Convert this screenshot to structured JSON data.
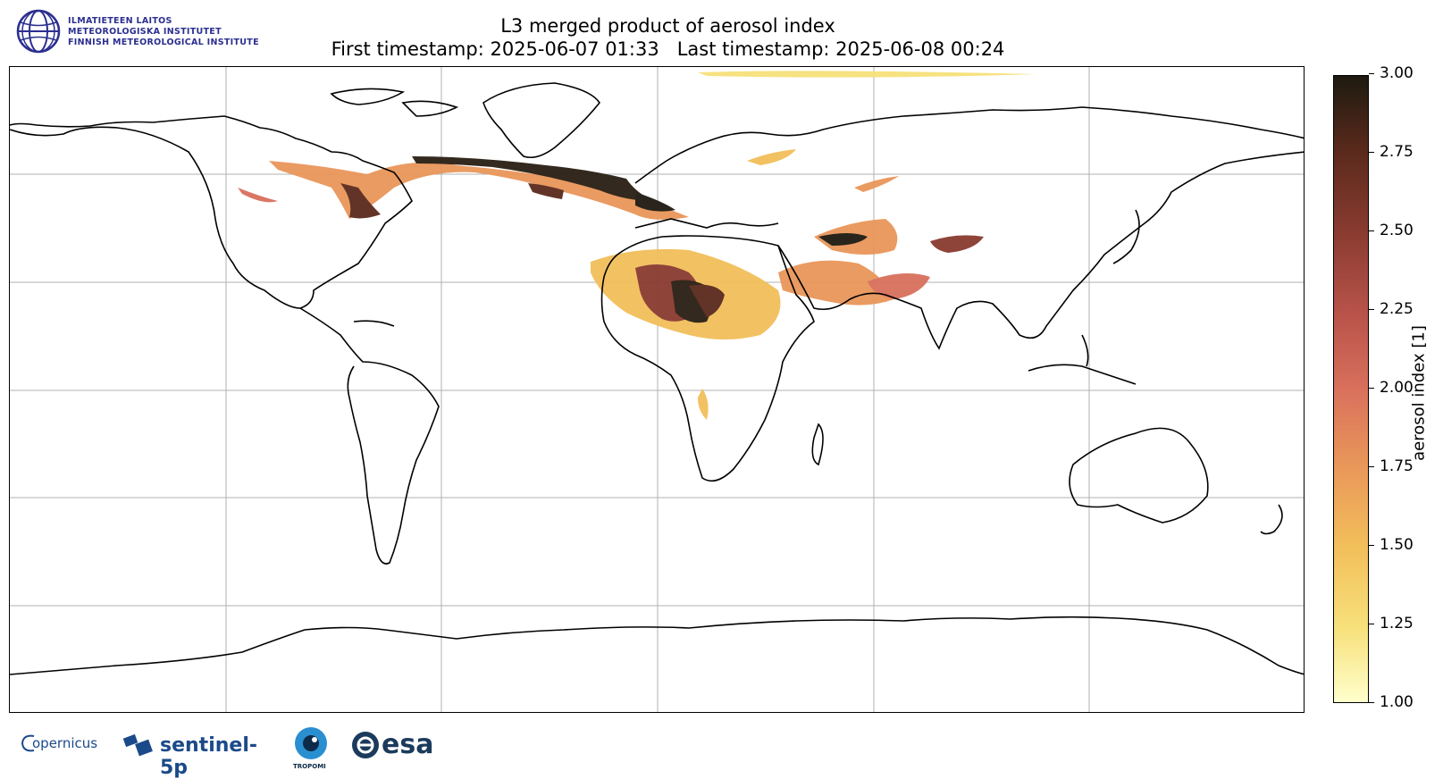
{
  "title": {
    "line1": "L3 merged product of aerosol index",
    "line2": "First timestamp: 2025-06-07 01:33   Last timestamp: 2025-06-08 00:24"
  },
  "fmi_logo": {
    "line1": "ILMATIETEEN LAITOS",
    "line2": "METEOROLOGISKA INSTITUTET",
    "line3": "FINNISH METEOROLOGICAL INSTITUTE"
  },
  "colorbar": {
    "label": "aerosol index [1]",
    "ticks": [
      "3.00",
      "2.75",
      "2.50",
      "2.25",
      "2.00",
      "1.75",
      "1.50",
      "1.25",
      "1.00"
    ],
    "min": 1.0,
    "max": 3.0,
    "colors": [
      "#ffffcc",
      "#f2be5a",
      "#d9705c",
      "#8a3b30",
      "#1e1a10"
    ]
  },
  "footer_logos": {
    "copernicus": "opernicus",
    "sentinel": "sentinel-5p",
    "tropomi": "TROPOMI",
    "esa": "esa"
  }
}
